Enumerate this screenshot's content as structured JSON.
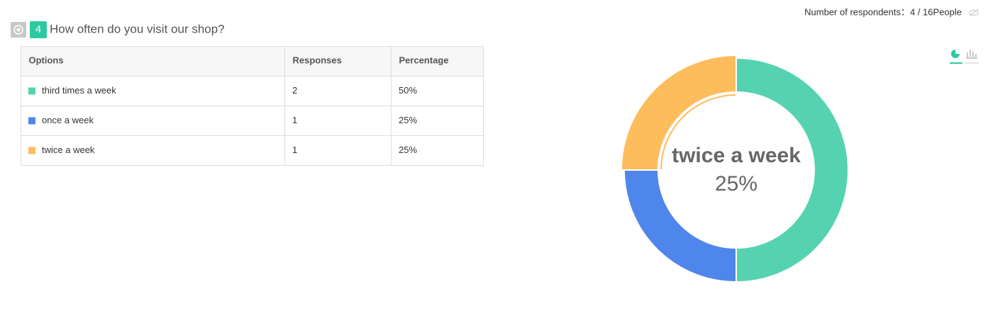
{
  "header": {
    "respondents": "Number of respondents：4 / 16People"
  },
  "question": {
    "number": "4",
    "text": "How often do you visit our shop?"
  },
  "table": {
    "columns": [
      "Options",
      "Responses",
      "Percentage"
    ],
    "responses": [
      2,
      1,
      1
    ]
  },
  "chart_data": {
    "type": "donut",
    "categories": [
      "third times a week",
      "once a week",
      "twice a week"
    ],
    "values": [
      50,
      25,
      25
    ],
    "value_labels": [
      "50%",
      "25%",
      "25%"
    ],
    "colors": [
      "#55d3b0",
      "#4f86eb",
      "#fdbd5c"
    ],
    "selected": 2
  }
}
